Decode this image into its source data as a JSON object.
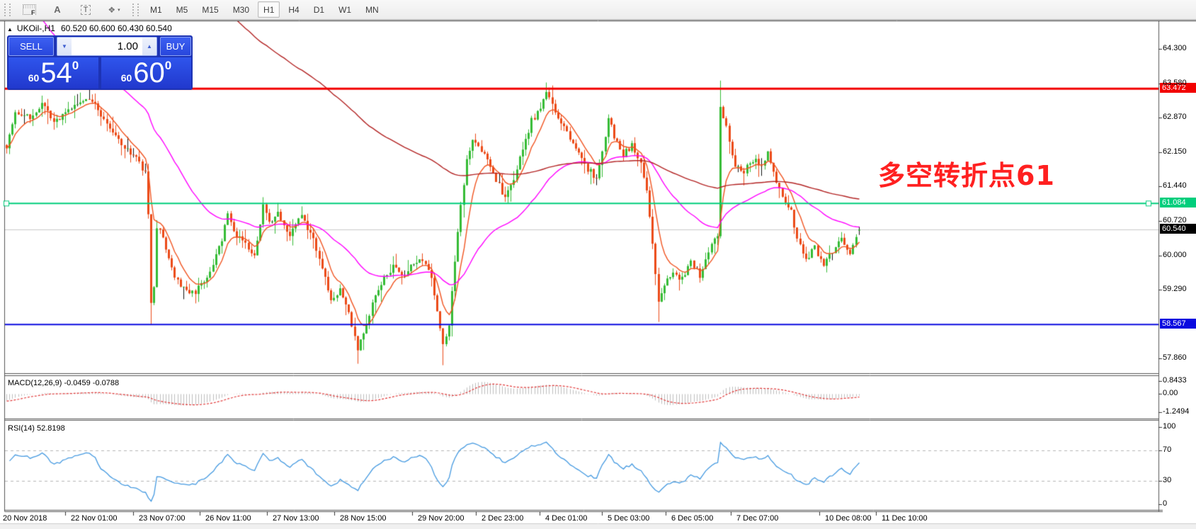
{
  "toolbar": {
    "tools": {
      "grid_label": "F",
      "text_a": "A",
      "text_t": "T",
      "shapes_glyph": "❖",
      "caret": "▾"
    },
    "timeframes": [
      "M1",
      "M5",
      "M15",
      "M30",
      "H1",
      "H4",
      "D1",
      "W1",
      "MN"
    ],
    "active_timeframe": "H1"
  },
  "chart": {
    "symbol_tf": "UKOil-,H1",
    "ohlc": "60.520 60.600 60.430 60.540",
    "expand_glyph": "▲"
  },
  "trade_panel": {
    "sell_label": "SELL",
    "buy_label": "BUY",
    "volume": "1.00",
    "down_glyph": "▼",
    "up_glyph": "▲",
    "sell_price": {
      "prefix": "60",
      "big": "54",
      "sup": "0"
    },
    "buy_price": {
      "prefix": "60",
      "big": "60",
      "sup": "0"
    }
  },
  "annotation": {
    "text": "多空转折点61",
    "color": "#FF2020"
  },
  "levels": {
    "resistance": {
      "value": "63.472",
      "color": "#F20000"
    },
    "pivot": {
      "value": "61.084",
      "color": "#00CE7C"
    },
    "current": {
      "value": "60.540",
      "color": "#000000"
    },
    "support": {
      "value": "58.567",
      "color": "#0A0ADF"
    }
  },
  "y_axis": {
    "ticks": [
      "64.300",
      "63.580",
      "62.870",
      "62.150",
      "61.440",
      "60.720",
      "60.000",
      "59.290",
      "57.860"
    ]
  },
  "x_axis": {
    "labels": [
      "20 Nov 2018",
      "22 Nov 01:00",
      "23 Nov 07:00",
      "26 Nov 11:00",
      "27 Nov 13:00",
      "28 Nov 15:00",
      "29 Nov 20:00",
      "2 Dec 23:00",
      "4 Dec 01:00",
      "5 Dec 03:00",
      "6 Dec 05:00",
      "7 Dec 07:00",
      "10 Dec 08:00",
      "11 Dec 10:00"
    ]
  },
  "macd_panel": {
    "label": "MACD(12,26,9) -0.0459 -0.0788",
    "axis": [
      "0.8433",
      "0.00",
      "-1.2494"
    ]
  },
  "rsi_panel": {
    "label": "RSI(14) 52.8198",
    "axis": [
      "100",
      "70",
      "30",
      "0"
    ]
  },
  "chart_data": {
    "type": "candlestick",
    "symbol": "UKOil-",
    "timeframe": "H1",
    "bar_count": 290,
    "noise_seed": 7,
    "visible_price_range": [
      57.55,
      64.87
    ],
    "price_lines": {
      "resistance": 63.472,
      "pivot": 61.084,
      "support": 58.567,
      "last": 60.54
    },
    "last_bar": {
      "open": 60.52,
      "high": 60.6,
      "low": 60.43,
      "close": 60.54
    },
    "close_keyframes": [
      [
        0,
        62.3
      ],
      [
        3,
        63.0
      ],
      [
        8,
        62.85
      ],
      [
        12,
        63.15
      ],
      [
        16,
        62.75
      ],
      [
        22,
        63.05
      ],
      [
        28,
        63.3
      ],
      [
        32,
        62.95
      ],
      [
        36,
        62.55
      ],
      [
        40,
        62.25
      ],
      [
        45,
        61.95
      ],
      [
        47,
        61.7
      ],
      [
        48,
        60.8
      ],
      [
        49,
        58.95
      ],
      [
        50,
        59.4
      ],
      [
        51,
        60.6
      ],
      [
        53,
        60.35
      ],
      [
        56,
        59.7
      ],
      [
        60,
        59.3
      ],
      [
        64,
        59.25
      ],
      [
        68,
        59.55
      ],
      [
        70,
        59.8
      ],
      [
        73,
        60.3
      ],
      [
        75,
        60.85
      ],
      [
        77,
        60.5
      ],
      [
        80,
        60.3
      ],
      [
        84,
        60.05
      ],
      [
        87,
        61.0
      ],
      [
        89,
        60.7
      ],
      [
        92,
        60.9
      ],
      [
        96,
        60.4
      ],
      [
        100,
        60.85
      ],
      [
        104,
        60.3
      ],
      [
        108,
        59.5
      ],
      [
        110,
        59.05
      ],
      [
        113,
        59.3
      ],
      [
        116,
        58.8
      ],
      [
        119,
        58.05
      ],
      [
        121,
        58.35
      ],
      [
        124,
        59.0
      ],
      [
        127,
        59.45
      ],
      [
        131,
        59.75
      ],
      [
        135,
        59.6
      ],
      [
        139,
        59.9
      ],
      [
        143,
        59.75
      ],
      [
        146,
        58.9
      ],
      [
        148,
        58.15
      ],
      [
        150,
        58.55
      ],
      [
        152,
        59.9
      ],
      [
        154,
        61.0
      ],
      [
        156,
        62.0
      ],
      [
        158,
        62.45
      ],
      [
        161,
        62.2
      ],
      [
        164,
        61.85
      ],
      [
        167,
        61.45
      ],
      [
        169,
        61.15
      ],
      [
        172,
        61.6
      ],
      [
        175,
        62.2
      ],
      [
        178,
        62.8
      ],
      [
        181,
        63.1
      ],
      [
        183,
        63.35
      ],
      [
        185,
        63.15
      ],
      [
        188,
        62.8
      ],
      [
        191,
        62.4
      ],
      [
        194,
        62.1
      ],
      [
        197,
        61.8
      ],
      [
        200,
        61.6
      ],
      [
        202,
        62.1
      ],
      [
        204,
        62.9
      ],
      [
        206,
        62.5
      ],
      [
        209,
        62.1
      ],
      [
        212,
        62.3
      ],
      [
        215,
        61.9
      ],
      [
        217,
        61.4
      ],
      [
        219,
        60.2
      ],
      [
        221,
        59.0
      ],
      [
        223,
        59.4
      ],
      [
        226,
        59.7
      ],
      [
        229,
        59.5
      ],
      [
        232,
        59.9
      ],
      [
        235,
        59.6
      ],
      [
        238,
        60.1
      ],
      [
        241,
        60.45
      ],
      [
        242,
        63.1
      ],
      [
        243,
        62.9
      ],
      [
        245,
        62.4
      ],
      [
        247,
        61.9
      ],
      [
        250,
        61.75
      ],
      [
        253,
        62.0
      ],
      [
        256,
        61.9
      ],
      [
        258,
        62.1
      ],
      [
        261,
        61.5
      ],
      [
        264,
        61.1
      ],
      [
        266,
        60.9
      ],
      [
        268,
        60.3
      ],
      [
        271,
        59.95
      ],
      [
        274,
        60.15
      ],
      [
        277,
        59.85
      ],
      [
        280,
        60.1
      ],
      [
        283,
        60.35
      ],
      [
        286,
        60.0
      ],
      [
        288,
        60.45
      ],
      [
        289,
        60.54
      ]
    ],
    "wick_overrides": {
      "lows": [
        [
          49,
          58.57
        ],
        [
          119,
          57.75
        ],
        [
          148,
          57.72
        ],
        [
          221,
          58.62
        ]
      ],
      "highs": [
        [
          28,
          63.45
        ],
        [
          183,
          63.6
        ],
        [
          242,
          63.64
        ]
      ]
    },
    "candle_colors": {
      "up": "#35BB35",
      "down": "#EB4A17",
      "doji": "#111111"
    },
    "moving_averages": [
      {
        "name": "ma-fast",
        "period": 8,
        "color": "#F0531F",
        "seed": null
      },
      {
        "name": "ma-medium",
        "period": 45,
        "color": "#FF00FF",
        "seed": 66.5
      },
      {
        "name": "ma-slow",
        "period": 160,
        "color": "#B22222",
        "seed": 71.0
      }
    ],
    "macd": {
      "fast": 12,
      "slow": 26,
      "signal": 9,
      "seed_gap": 0.5,
      "axis_max": 0.8433,
      "axis_min": -1.2494,
      "hist_color": "#BDBDBD",
      "signal_color": "#E03636"
    },
    "rsi": {
      "period": 14,
      "levels": [
        70,
        30
      ],
      "current": 52.8198,
      "color": "#4499E0"
    }
  }
}
